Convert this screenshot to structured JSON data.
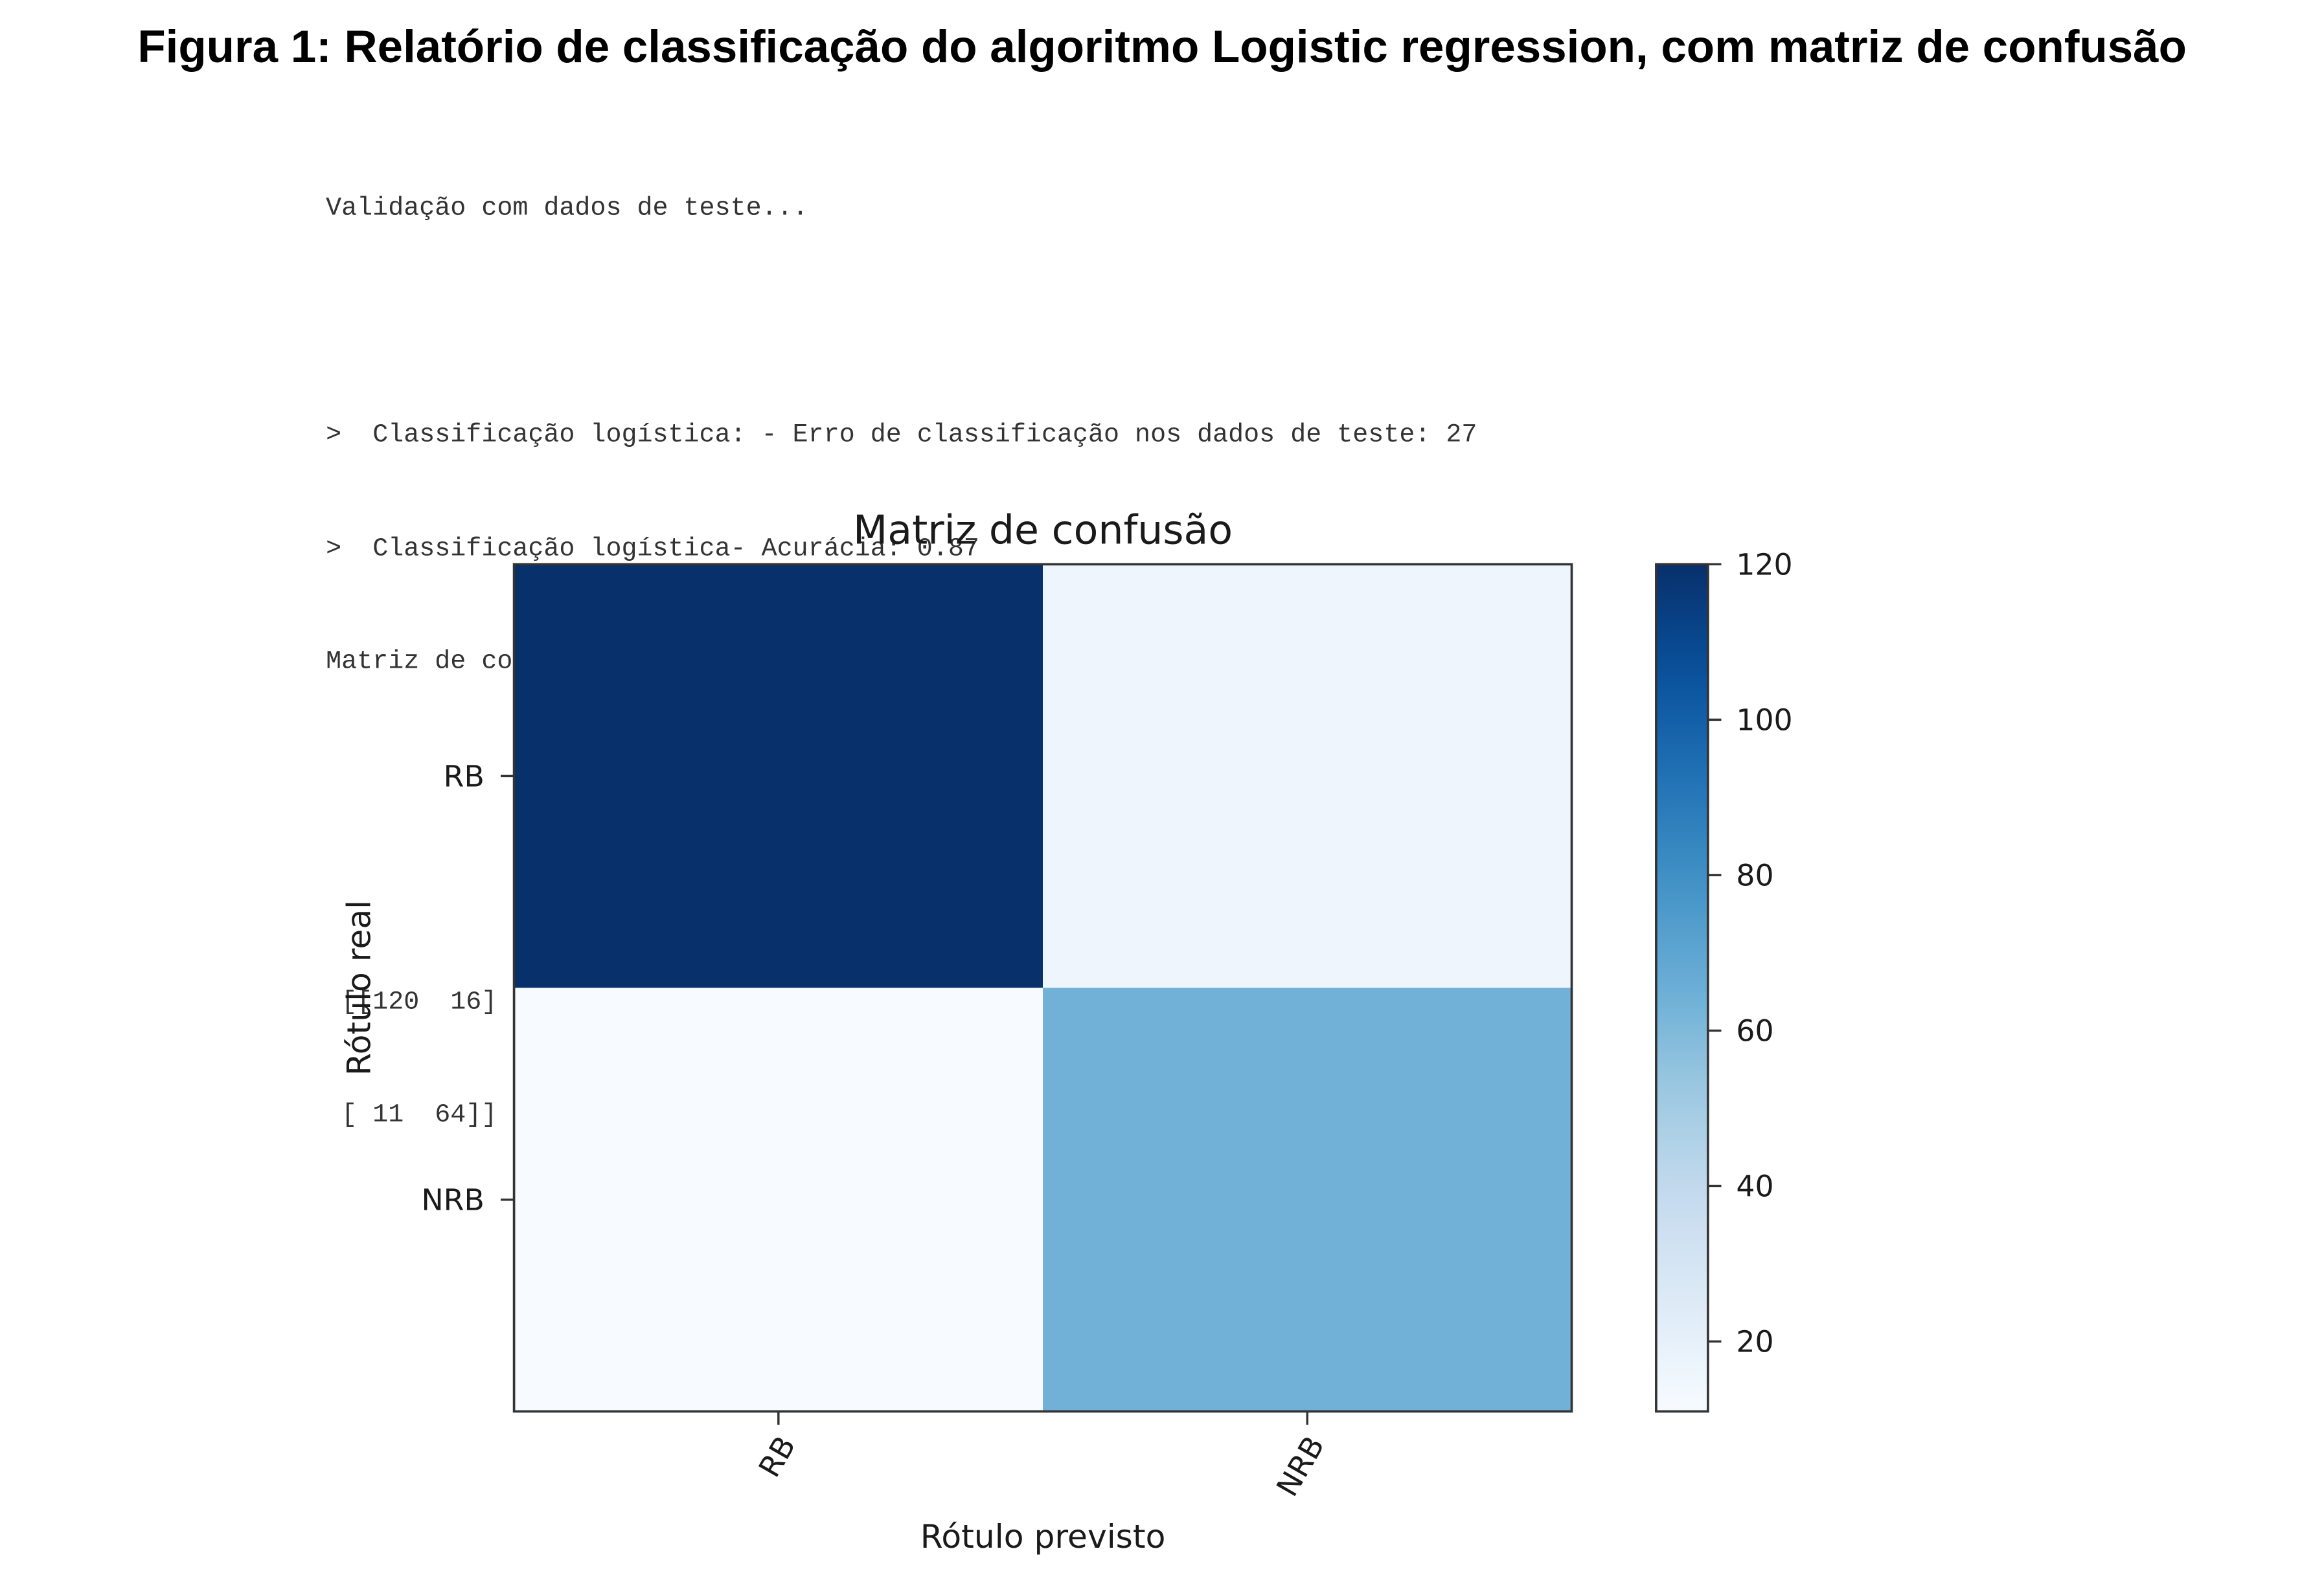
{
  "figure": {
    "caption": "Figura 1: Relatório de classificação do algoritmo Logistic regression, com matriz de confusão"
  },
  "console": {
    "line_validation": "Validação com dados de teste...",
    "line_error": ">  Classificação logística: - Erro de classificação nos dados de teste: 27",
    "line_accuracy": ">  Classificação logística- Acurácia: 0.87",
    "line_matrix_label": "Matriz de confusão:",
    "matrix_row_1": " [[120  16]",
    "matrix_row_2": " [ 11  64]]"
  },
  "chart_data": {
    "type": "heatmap",
    "title": "Matriz de confusão",
    "xlabel": "Rótulo previsto",
    "ylabel": "Rótulo real",
    "x_categories": [
      "RB",
      "NRB"
    ],
    "y_categories": [
      "RB",
      "NRB"
    ],
    "values": [
      [
        120,
        16
      ],
      [
        11,
        64
      ]
    ],
    "colormap": "Blues",
    "color_range": [
      11,
      120
    ],
    "colorbar_ticks": [
      120,
      100,
      80,
      60,
      40,
      20
    ],
    "colors": {
      "low": "#f7fbff",
      "high": "#08306b"
    },
    "grid": false
  }
}
